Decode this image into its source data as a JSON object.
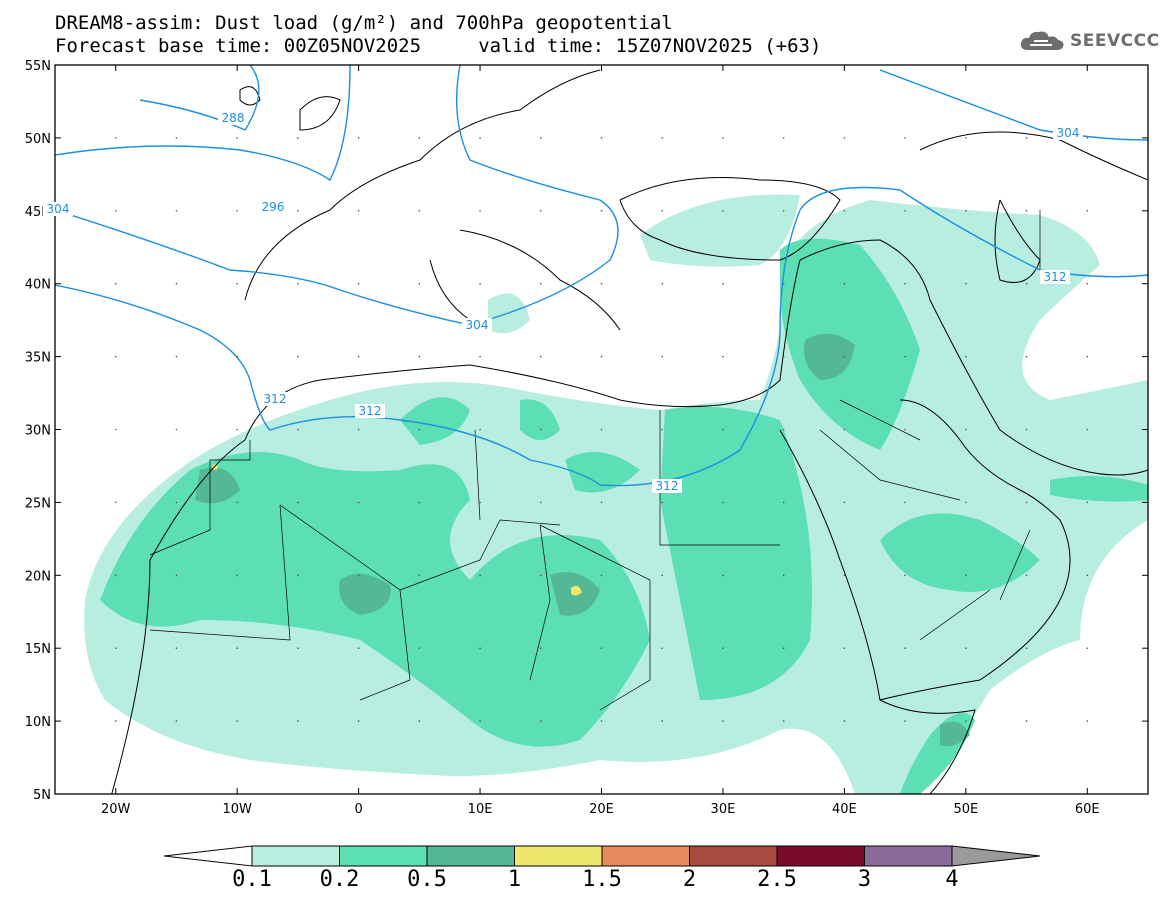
{
  "title": {
    "line1": "DREAM8-assim: Dust load (g/m²) and 700hPa geopotential",
    "line2": "Forecast base time: 00Z05NOV2025     valid time: 15Z07NOV2025 (+63)"
  },
  "logo": {
    "text": "SEEVCCC",
    "icon": "cloud-icon"
  },
  "map": {
    "lon_range": [
      -25,
      65
    ],
    "lat_range": [
      5,
      55
    ],
    "lon_ticks": [
      "20W",
      "10W",
      "0",
      "10E",
      "20E",
      "30E",
      "40E",
      "50E",
      "60E"
    ],
    "lat_ticks": [
      "55N",
      "50N",
      "45N",
      "40N",
      "35N",
      "30N",
      "25N",
      "20N",
      "15N",
      "10N",
      "5N"
    ],
    "contour_color": "#1c8fe0",
    "contour_labels": [
      "288",
      "296",
      "304",
      "304",
      "312",
      "312",
      "312",
      "304",
      "312"
    ]
  },
  "colorbar": {
    "levels": [
      "0.1",
      "0.2",
      "0.5",
      "1",
      "1.5",
      "2",
      "2.5",
      "3",
      "4"
    ],
    "colors": [
      "#ffffff",
      "#b8eee0",
      "#5ddfb6",
      "#55b894",
      "#efe66e",
      "#e88a5e",
      "#a84a3e",
      "#7a0a2c",
      "#8a6a9a",
      "#9a9a9a"
    ]
  }
}
